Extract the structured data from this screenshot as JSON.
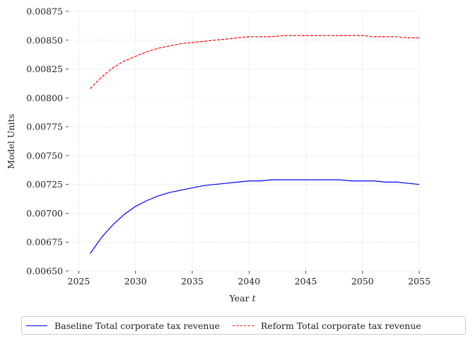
{
  "chart_data": {
    "type": "line",
    "title": "",
    "xlabel_prefix": "Year ",
    "xlabel_var": "t",
    "ylabel": "Model Units",
    "xlim": [
      2024.1,
      2055
    ],
    "ylim": [
      0.0065,
      0.00875
    ],
    "xticks": [
      2025,
      2030,
      2035,
      2040,
      2045,
      2050,
      2055
    ],
    "xtick_labels": [
      "2025",
      "2030",
      "2035",
      "2040",
      "2045",
      "2050",
      "2055"
    ],
    "yticks": [
      0.0065,
      0.00675,
      0.007,
      0.00725,
      0.0075,
      0.00775,
      0.008,
      0.00825,
      0.0085,
      0.00875
    ],
    "ytick_labels": [
      "0.00650",
      "0.00675",
      "0.00700",
      "0.00725",
      "0.00750",
      "0.00775",
      "0.00800",
      "0.00825",
      "0.00850",
      "0.00875"
    ],
    "grid": true,
    "legend_position": "below",
    "x": [
      2026,
      2027,
      2028,
      2029,
      2030,
      2031,
      2032,
      2033,
      2034,
      2035,
      2036,
      2037,
      2038,
      2039,
      2040,
      2041,
      2042,
      2043,
      2044,
      2045,
      2046,
      2047,
      2048,
      2049,
      2050,
      2051,
      2052,
      2053,
      2054,
      2055
    ],
    "series": [
      {
        "name": "Baseline Total corporate tax revenue",
        "color": "#0000ff",
        "style": "solid",
        "values": [
          0.00665,
          0.00679,
          0.0069,
          0.00699,
          0.00706,
          0.00711,
          0.00715,
          0.00718,
          0.0072,
          0.00722,
          0.00724,
          0.00725,
          0.00726,
          0.00727,
          0.00728,
          0.00728,
          0.00729,
          0.00729,
          0.00729,
          0.00729,
          0.00729,
          0.00729,
          0.00729,
          0.00728,
          0.00728,
          0.00728,
          0.00727,
          0.00727,
          0.00726,
          0.00725
        ]
      },
      {
        "name": "Reform Total corporate tax revenue",
        "color": "#ff0000",
        "style": "dashed",
        "values": [
          0.00808,
          0.00818,
          0.00826,
          0.00832,
          0.00836,
          0.0084,
          0.00843,
          0.00845,
          0.00847,
          0.00848,
          0.00849,
          0.0085,
          0.00851,
          0.00852,
          0.00853,
          0.00853,
          0.00853,
          0.00854,
          0.00854,
          0.00854,
          0.00854,
          0.00854,
          0.00854,
          0.00854,
          0.00854,
          0.00853,
          0.00853,
          0.00853,
          0.00852,
          0.00852
        ]
      }
    ]
  }
}
